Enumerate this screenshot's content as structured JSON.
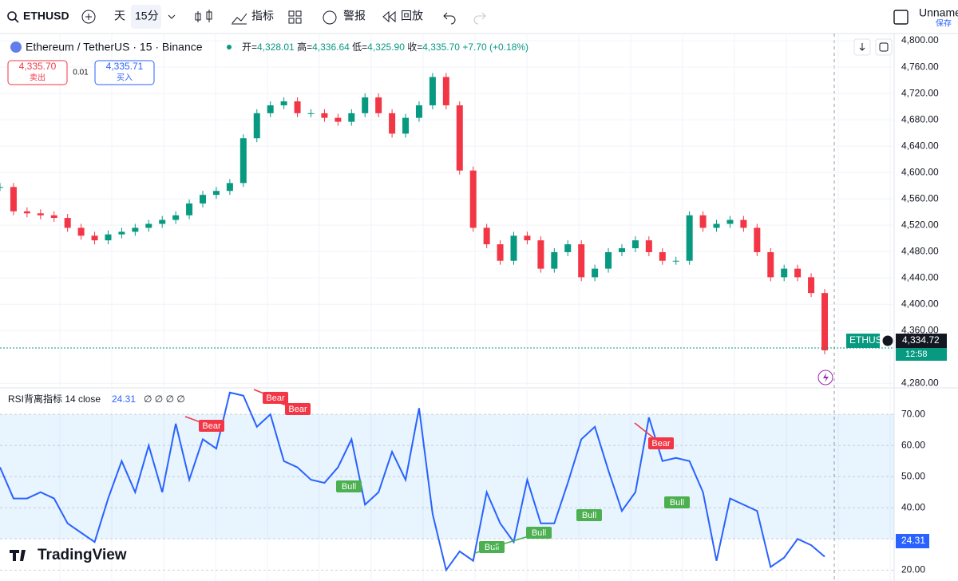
{
  "toolbar": {
    "symbol": "ETHUSD",
    "day": "天",
    "interval": "15分",
    "indicators": "指标",
    "alerts": "警报",
    "replay": "回放",
    "layout_name": "Unname",
    "save": "保存"
  },
  "legend": {
    "title": "Ethereum / TetherUS · 15 · Binance",
    "open_label": "开=",
    "open": "4,328.01",
    "high_label": "高=",
    "high": "4,336.64",
    "low_label": "低=",
    "low": "4,325.90",
    "close_label": "收=",
    "close": "4,335.70",
    "change": "+7.70 (+0.18%)"
  },
  "trade": {
    "sell_price": "4,335.70",
    "sell": "卖出",
    "spread": "0.01",
    "buy_price": "4,335.71",
    "buy": "买入"
  },
  "price_tag": {
    "symbol": "ETHUSD",
    "price": "4,334.72",
    "countdown": "12:58"
  },
  "chart_data": [
    {
      "type": "candlestick",
      "name": "price",
      "values": [
        4578,
        4541,
        4538,
        4535,
        4531,
        4516,
        4504,
        4497,
        4506,
        4510,
        4516,
        4522,
        4528,
        4535,
        4553,
        4566,
        4572,
        4584,
        4652,
        4690,
        4702,
        4708,
        4690,
        4690,
        4683,
        4677,
        4690,
        4714,
        4690,
        4659,
        4683,
        4702,
        4745,
        4702,
        4603,
        4516,
        4491,
        4466,
        4504,
        4497,
        4454,
        4479,
        4491,
        4441,
        4454,
        4479,
        4485,
        4497,
        4479,
        4466,
        4466,
        4535,
        4516,
        4522,
        4528,
        4516,
        4479,
        4441,
        4454,
        4441,
        4417,
        4330
      ],
      "ylim": [
        4273,
        4811
      ],
      "yticks": [
        {
          "value": 4800,
          "label": "4,800.00"
        },
        {
          "value": 4760,
          "label": "4,760.00"
        },
        {
          "value": 4720,
          "label": "4,720.00"
        },
        {
          "value": 4680,
          "label": "4,680.00"
        },
        {
          "value": 4640,
          "label": "4,640.00"
        },
        {
          "value": 4600,
          "label": "4,600.00"
        },
        {
          "value": 4560,
          "label": "4,560.00"
        },
        {
          "value": 4520,
          "label": "4,520.00"
        },
        {
          "value": 4480,
          "label": "4,480.00"
        },
        {
          "value": 4440,
          "label": "4,440.00"
        },
        {
          "value": 4400,
          "label": "4,400.00"
        },
        {
          "value": 4360,
          "label": "4,360.00"
        },
        {
          "value": 4280,
          "label": "4,280.00"
        }
      ],
      "up_color": "#089981",
      "down_color": "#f23645",
      "grid": true
    },
    {
      "type": "line",
      "name": "RSI背离指标 14 close",
      "last_label": "24.31",
      "inputs": "∅ ∅ ∅ ∅",
      "values": [
        53,
        43,
        43,
        45,
        43,
        35,
        32,
        29,
        43,
        55,
        45,
        60,
        45,
        67,
        49,
        62,
        59,
        77,
        76,
        66,
        70,
        55,
        53,
        49,
        48,
        53,
        62,
        41,
        45,
        58,
        49,
        72,
        38,
        20,
        26,
        23,
        45,
        35,
        29,
        49,
        35,
        35,
        48,
        62,
        66,
        52,
        39,
        45,
        69,
        55,
        56,
        55,
        45,
        23,
        43,
        41,
        39,
        21,
        24,
        30,
        28,
        24.31
      ],
      "color": "#2962ff",
      "band": [
        30,
        70
      ],
      "band_color": "#2196f3",
      "ylim": [
        16.5,
        78.5
      ],
      "yticks": [
        {
          "value": 70,
          "label": "70.00"
        },
        {
          "value": 60,
          "label": "60.00"
        },
        {
          "value": 50,
          "label": "50.00"
        },
        {
          "value": 40,
          "label": "40.00"
        },
        {
          "value": 30,
          "label": "30.00"
        },
        {
          "value": 20,
          "label": "20.00"
        }
      ],
      "divergences": [
        "Bear",
        "Bear",
        "Bear",
        "Bear",
        "Bull",
        "Bull",
        "Bull",
        "Bull",
        "Bull"
      ]
    }
  ],
  "watermark": "TradingView"
}
